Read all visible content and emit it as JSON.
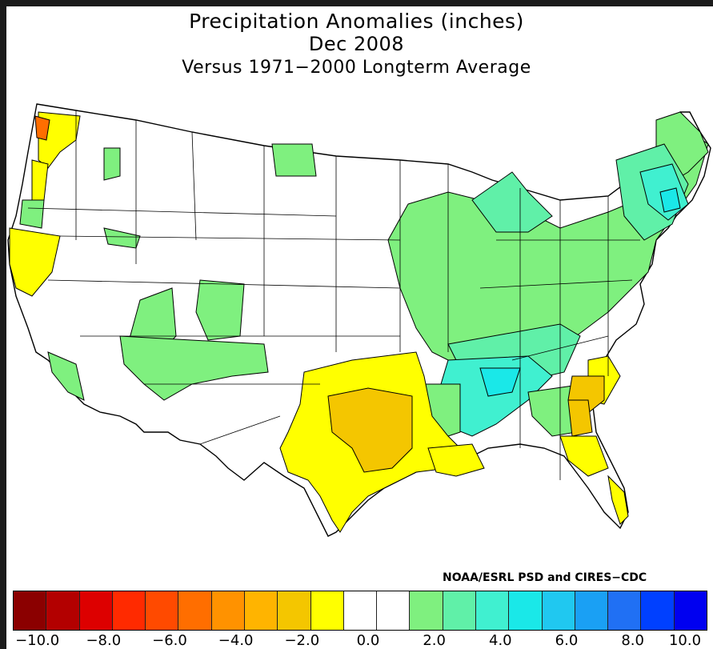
{
  "title": {
    "line1": "Precipitation Anomalies (inches)",
    "line2": "Dec 2008",
    "line3": "Versus 1971−2000 Longterm Average"
  },
  "credit": "NOAA/ESRL PSD and CIRES−CDC",
  "colorbar": {
    "colors": [
      "#8b0000",
      "#b30000",
      "#dd0000",
      "#ff2a00",
      "#ff4a00",
      "#ff6e00",
      "#ff9200",
      "#ffb400",
      "#f4c600",
      "#ffff00",
      "#ffffff",
      "#ffffff",
      "#7ff07f",
      "#60f0a8",
      "#40f0d0",
      "#1ae8e8",
      "#20c8f0",
      "#1aa0f4",
      "#2070f4",
      "#0040ff",
      "#0000f0"
    ],
    "ticks": [
      "−10.0",
      "−8.0",
      "−6.0",
      "−4.0",
      "−2.0",
      "0.0",
      "2.0",
      "4.0",
      "6.0",
      "8.0",
      "10.0"
    ]
  },
  "legend_classes": {
    "wet_1": "#7ff07f",
    "wet_2": "#60f0a8",
    "wet_3": "#40f0d0",
    "wet_4": "#1ae8e8",
    "dry_1": "#ffff00",
    "dry_2": "#f4c600",
    "dry_3": "#ff6e00",
    "neutral": "#ffffff"
  }
}
